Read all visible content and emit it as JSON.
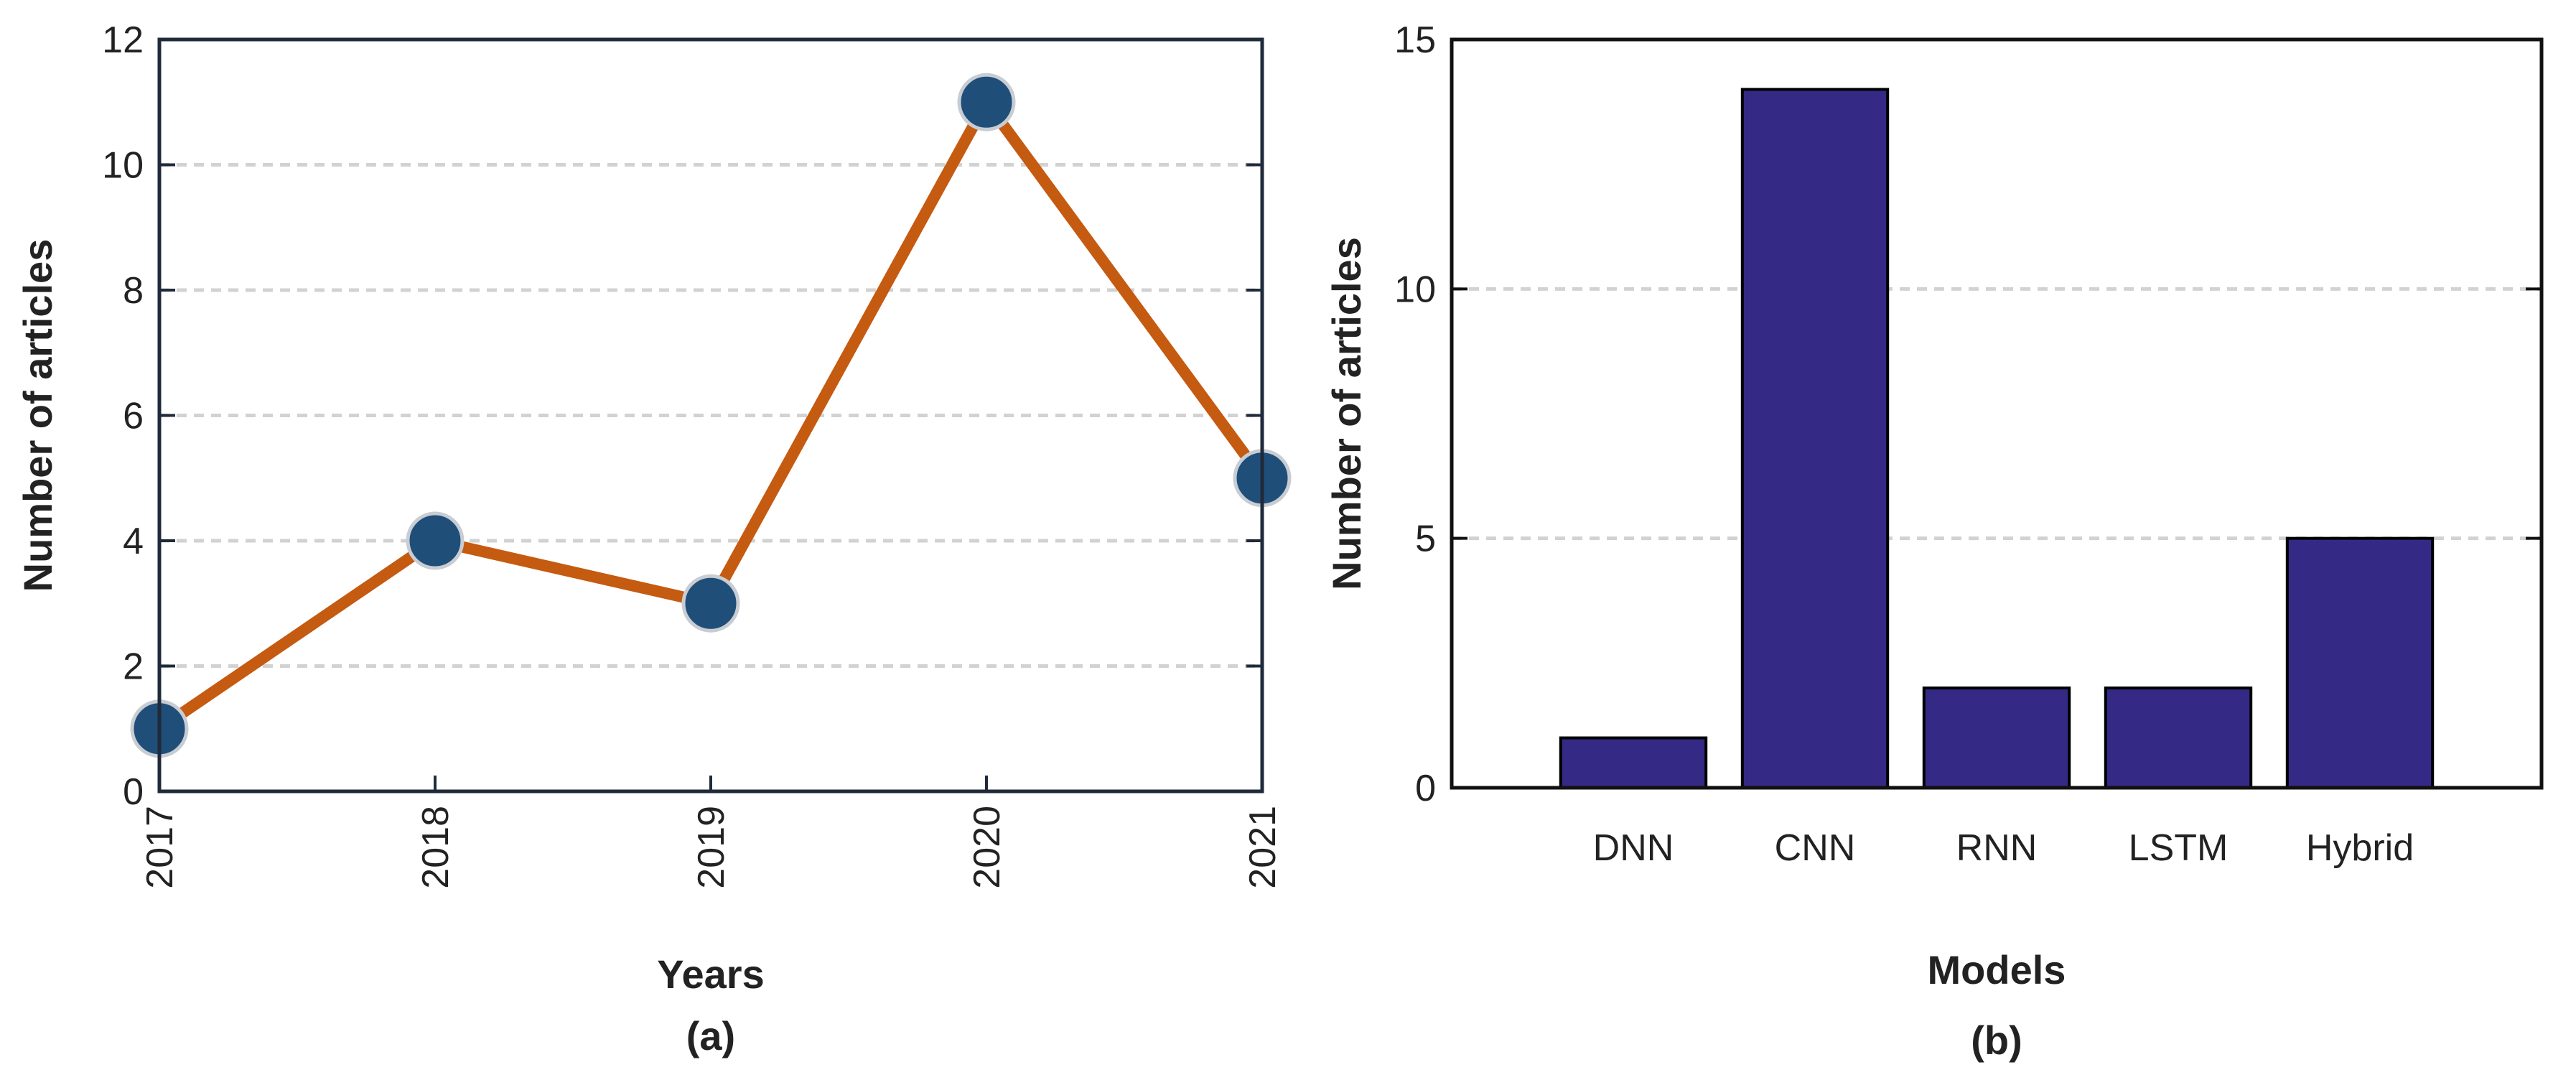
{
  "chart_data": [
    {
      "type": "line",
      "panel_label": "(a)",
      "xlabel": "Years",
      "ylabel": "Number of articles",
      "x": [
        "2017",
        "2018",
        "2019",
        "2020",
        "2021"
      ],
      "series": [
        {
          "values": [
            1,
            4,
            3,
            11,
            5
          ]
        }
      ],
      "ylim": [
        0,
        12
      ],
      "yticks": [
        0,
        2,
        4,
        6,
        8,
        10,
        12
      ],
      "grid": true,
      "line_color": "#c55a11",
      "marker_color": "#1f4e79"
    },
    {
      "type": "bar",
      "panel_label": "(b)",
      "xlabel": "Models",
      "ylabel": "Number of articles",
      "categories": [
        "DNN",
        "CNN",
        "RNN",
        "LSTM",
        "Hybrid"
      ],
      "values": [
        1,
        14,
        2,
        2,
        5
      ],
      "ylim": [
        0,
        15
      ],
      "yticks": [
        0,
        5,
        10,
        15
      ],
      "grid": true,
      "bar_color": "#342a85"
    }
  ]
}
